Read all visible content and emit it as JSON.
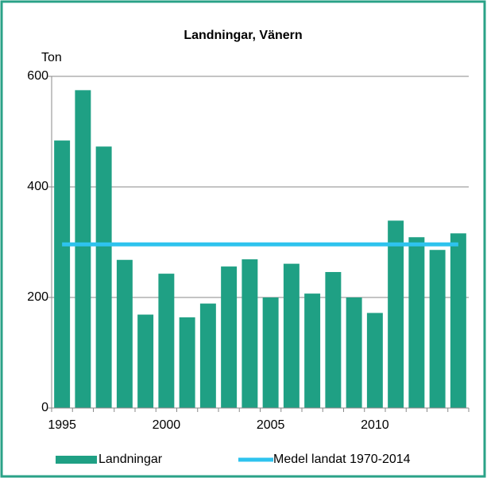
{
  "chart_data": {
    "type": "bar",
    "title": "Landningar, Vänern",
    "y_label": "Ton",
    "categories": [
      "1995",
      null,
      null,
      null,
      null,
      "2000",
      null,
      null,
      null,
      null,
      "2005",
      null,
      null,
      null,
      null,
      "2010",
      null,
      null,
      null,
      null
    ],
    "series": [
      {
        "name": "Landningar",
        "type": "bar",
        "color": "#1fa084",
        "values": [
          484,
          575,
          473,
          268,
          169,
          243,
          164,
          189,
          256,
          269,
          200,
          261,
          207,
          246,
          200,
          172,
          339,
          309,
          286,
          316
        ]
      },
      {
        "name": "Medel landat 1970-2014",
        "type": "line",
        "color": "#2ec3ee",
        "values": [
          296,
          296,
          296,
          296,
          296,
          296,
          296,
          296,
          296,
          296,
          296,
          296,
          296,
          296,
          296,
          296,
          296,
          296,
          296,
          296
        ]
      }
    ],
    "ylim": [
      0,
      600
    ],
    "yticks": [
      0,
      200,
      400,
      600
    ],
    "grid": true,
    "legend": "bottom"
  }
}
